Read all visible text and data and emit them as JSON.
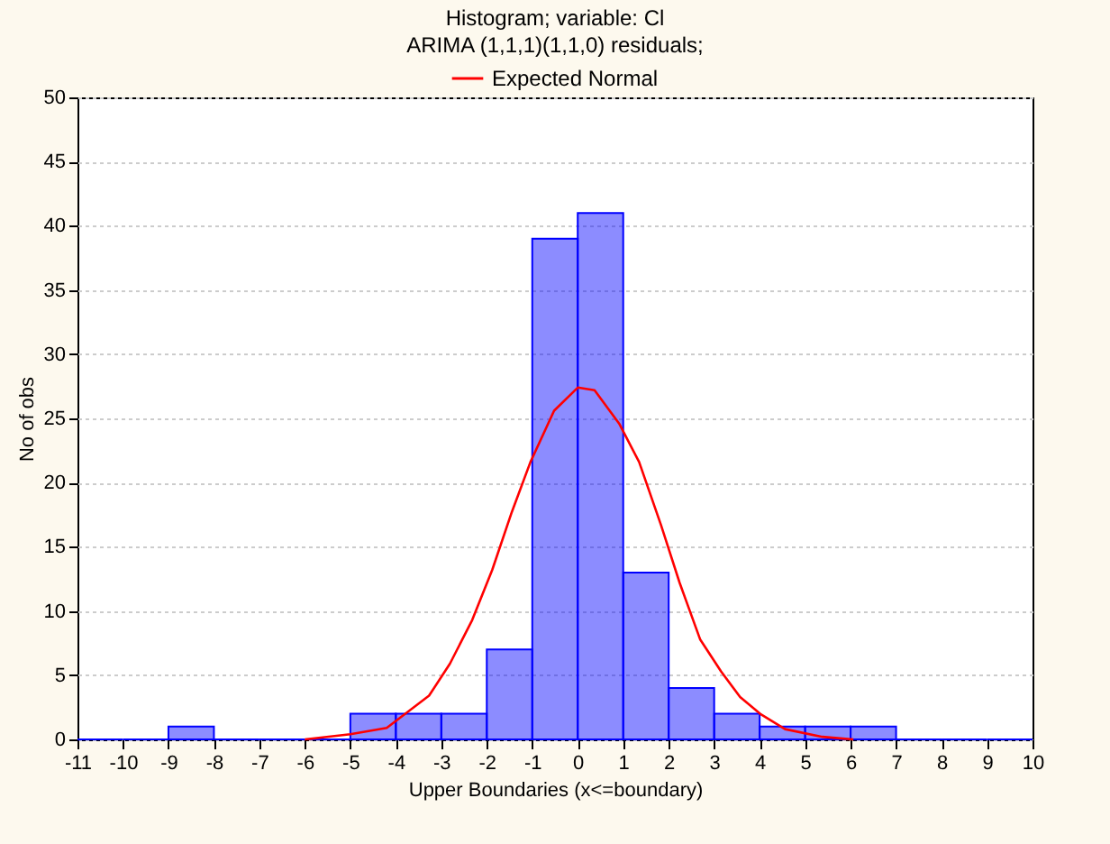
{
  "chart_data": {
    "type": "histogram",
    "title": "Histogram; variable: Cl",
    "subtitle": "ARIMA (1,1,1)(1,1,0) residuals;",
    "xlabel": "Upper Boundaries (x<=boundary)",
    "ylabel": "No of obs",
    "bins": [
      -11,
      -10,
      -9,
      -8,
      -7,
      -6,
      -5,
      -4,
      -3,
      -2,
      -1,
      0,
      1,
      2,
      3,
      4,
      5,
      6,
      7,
      8,
      9,
      10
    ],
    "values": [
      0,
      0,
      1,
      0,
      0,
      0,
      2,
      2,
      2,
      7,
      39,
      41,
      13,
      4,
      2,
      1,
      1,
      1,
      0,
      0,
      0
    ],
    "color": "#0000ff",
    "series": [
      {
        "name": "Expected Normal",
        "type": "line",
        "color": "#ff0000",
        "x": [
          -6,
          -5,
          -4.2,
          -3.27,
          -2.81,
          -2.32,
          -1.88,
          -1.45,
          -1.04,
          -0.52,
          0,
          0.37,
          0.91,
          1.35,
          1.83,
          2.24,
          2.69,
          3.15,
          3.57,
          4.01,
          4.56,
          5.38,
          6.06
        ],
        "values": [
          0,
          0.4,
          0.9,
          3.4,
          5.9,
          9.3,
          13.2,
          17.7,
          21.6,
          25.6,
          27.4,
          27.2,
          24.6,
          21.6,
          16.7,
          12.2,
          7.8,
          5.3,
          3.3,
          2,
          0.8,
          0.2,
          0
        ]
      }
    ],
    "xlim": [
      -11,
      10
    ],
    "xticks": [
      -11,
      -10,
      -9,
      -8,
      -7,
      -6,
      -5,
      -4,
      -3,
      -2,
      -1,
      0,
      1,
      2,
      3,
      4,
      5,
      6,
      7,
      8,
      9,
      10
    ],
    "ylim": [
      0,
      50
    ],
    "yticks": [
      0,
      5,
      10,
      15,
      20,
      25,
      30,
      35,
      40,
      45,
      50
    ],
    "grid": "y",
    "legend": "top"
  }
}
